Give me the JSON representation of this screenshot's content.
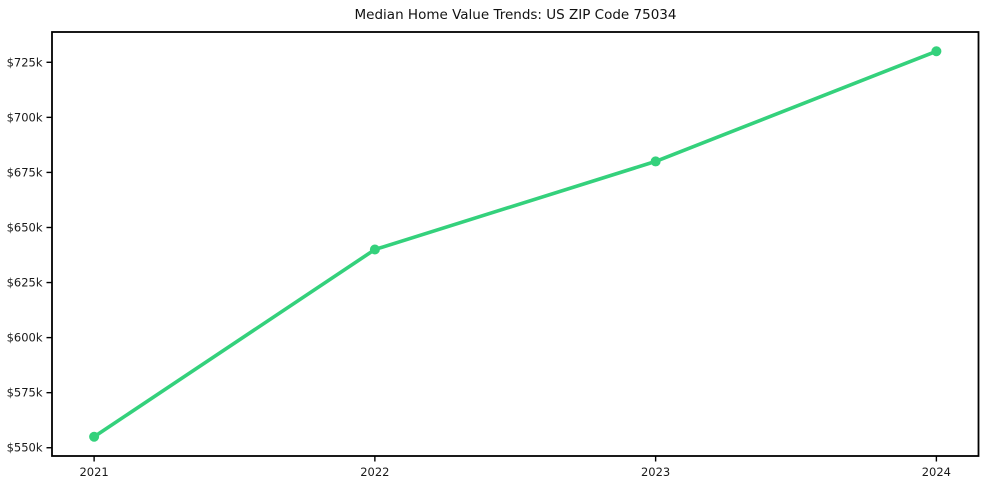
{
  "chart_data": {
    "type": "line",
    "title": "Median Home Value Trends: US ZIP Code 75034",
    "xlabel": "",
    "ylabel": "",
    "x": [
      2021,
      2022,
      2023,
      2024
    ],
    "series": [
      {
        "name": "Median Home Value",
        "values": [
          555000,
          640000,
          680000,
          730000
        ]
      }
    ],
    "x_ticks": [
      {
        "value": 2021,
        "label": "2021"
      },
      {
        "value": 2022,
        "label": "2022"
      },
      {
        "value": 2023,
        "label": "2023"
      },
      {
        "value": 2024,
        "label": "2024"
      }
    ],
    "y_ticks": [
      {
        "value": 550000,
        "label": "$550k"
      },
      {
        "value": 575000,
        "label": "$575k"
      },
      {
        "value": 600000,
        "label": "$600k"
      },
      {
        "value": 625000,
        "label": "$625k"
      },
      {
        "value": 650000,
        "label": "$650k"
      },
      {
        "value": 675000,
        "label": "$675k"
      },
      {
        "value": 700000,
        "label": "$700k"
      },
      {
        "value": 725000,
        "label": "$725k"
      }
    ],
    "xlim": [
      2020.85,
      2024.15
    ],
    "ylim": [
      546250,
      738750
    ],
    "grid": false,
    "legend": "none",
    "marker": "circle"
  },
  "colors": {
    "line": "#34d17c",
    "axis": "#000000",
    "tick_label": "#1a1a1a",
    "title": "#111111",
    "background": "#ffffff"
  }
}
